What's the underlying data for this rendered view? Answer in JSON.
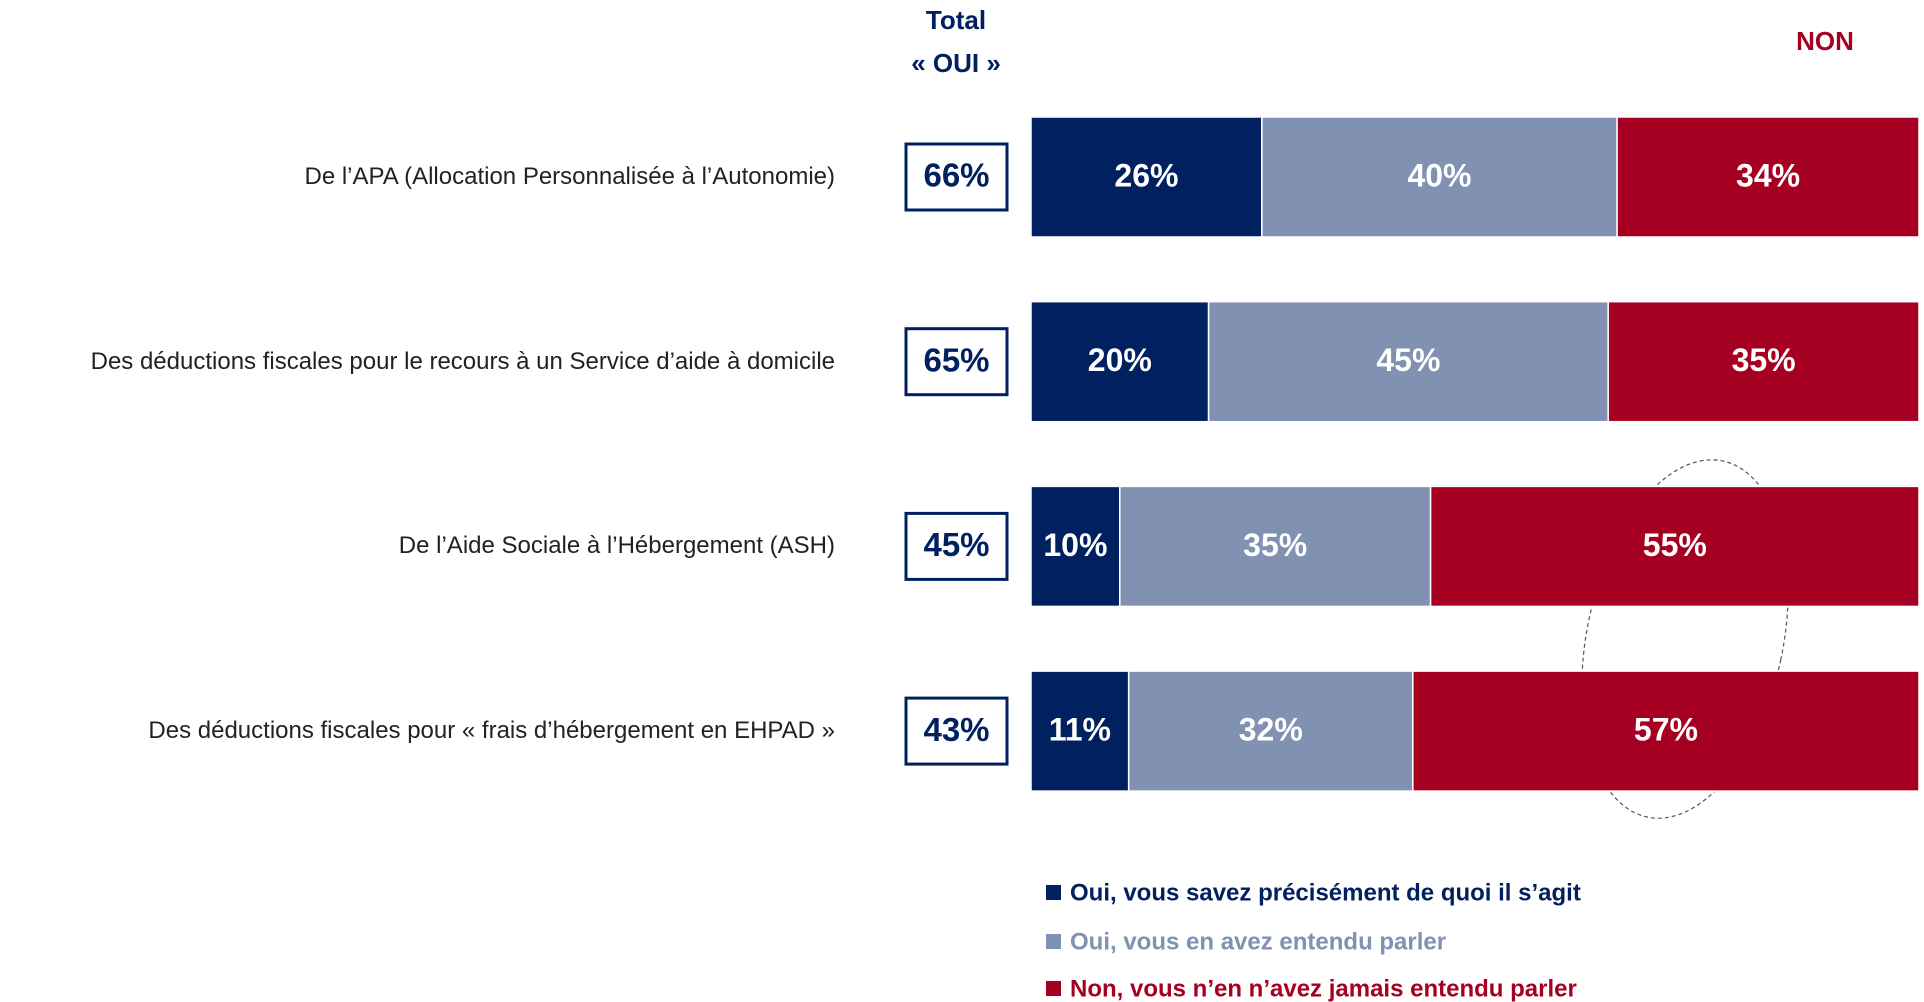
{
  "chart_data": {
    "type": "stacked_barh",
    "total_header": [
      "Total",
      "« OUI »"
    ],
    "non_header": "NON",
    "categories": [
      "De l’APA (Allocation Personnalisée à l’Autonomie)",
      "Des déductions fiscales pour le recours à un Service d’aide à domicile",
      "De l’Aide Sociale à l’Hébergement (ASH)",
      "Des déductions fiscales pour « frais d’hébergement en EHPAD »"
    ],
    "totals": {
      "values": [
        66,
        65,
        45,
        43
      ],
      "value_labels": [
        "66%",
        "65%",
        "45%",
        "43%"
      ]
    },
    "series": [
      {
        "name": "Oui, vous savez précisément de quoi il s’agit",
        "color": "#002060",
        "values": [
          26,
          20,
          10,
          11
        ],
        "value_labels": [
          "26%",
          "20%",
          "10%",
          "11%"
        ]
      },
      {
        "name": "Oui, vous en avez entendu parler",
        "color": "#8091b2",
        "values": [
          40,
          45,
          35,
          32
        ],
        "value_labels": [
          "40%",
          "45%",
          "35%",
          "32%"
        ]
      },
      {
        "name": "Non, vous n’en n’avez jamais entendu parler",
        "color": "#a50021",
        "values": [
          34,
          35,
          55,
          57
        ],
        "value_labels": [
          "34%",
          "35%",
          "55%",
          "57%"
        ]
      }
    ],
    "xlim": [
      0,
      100
    ]
  }
}
